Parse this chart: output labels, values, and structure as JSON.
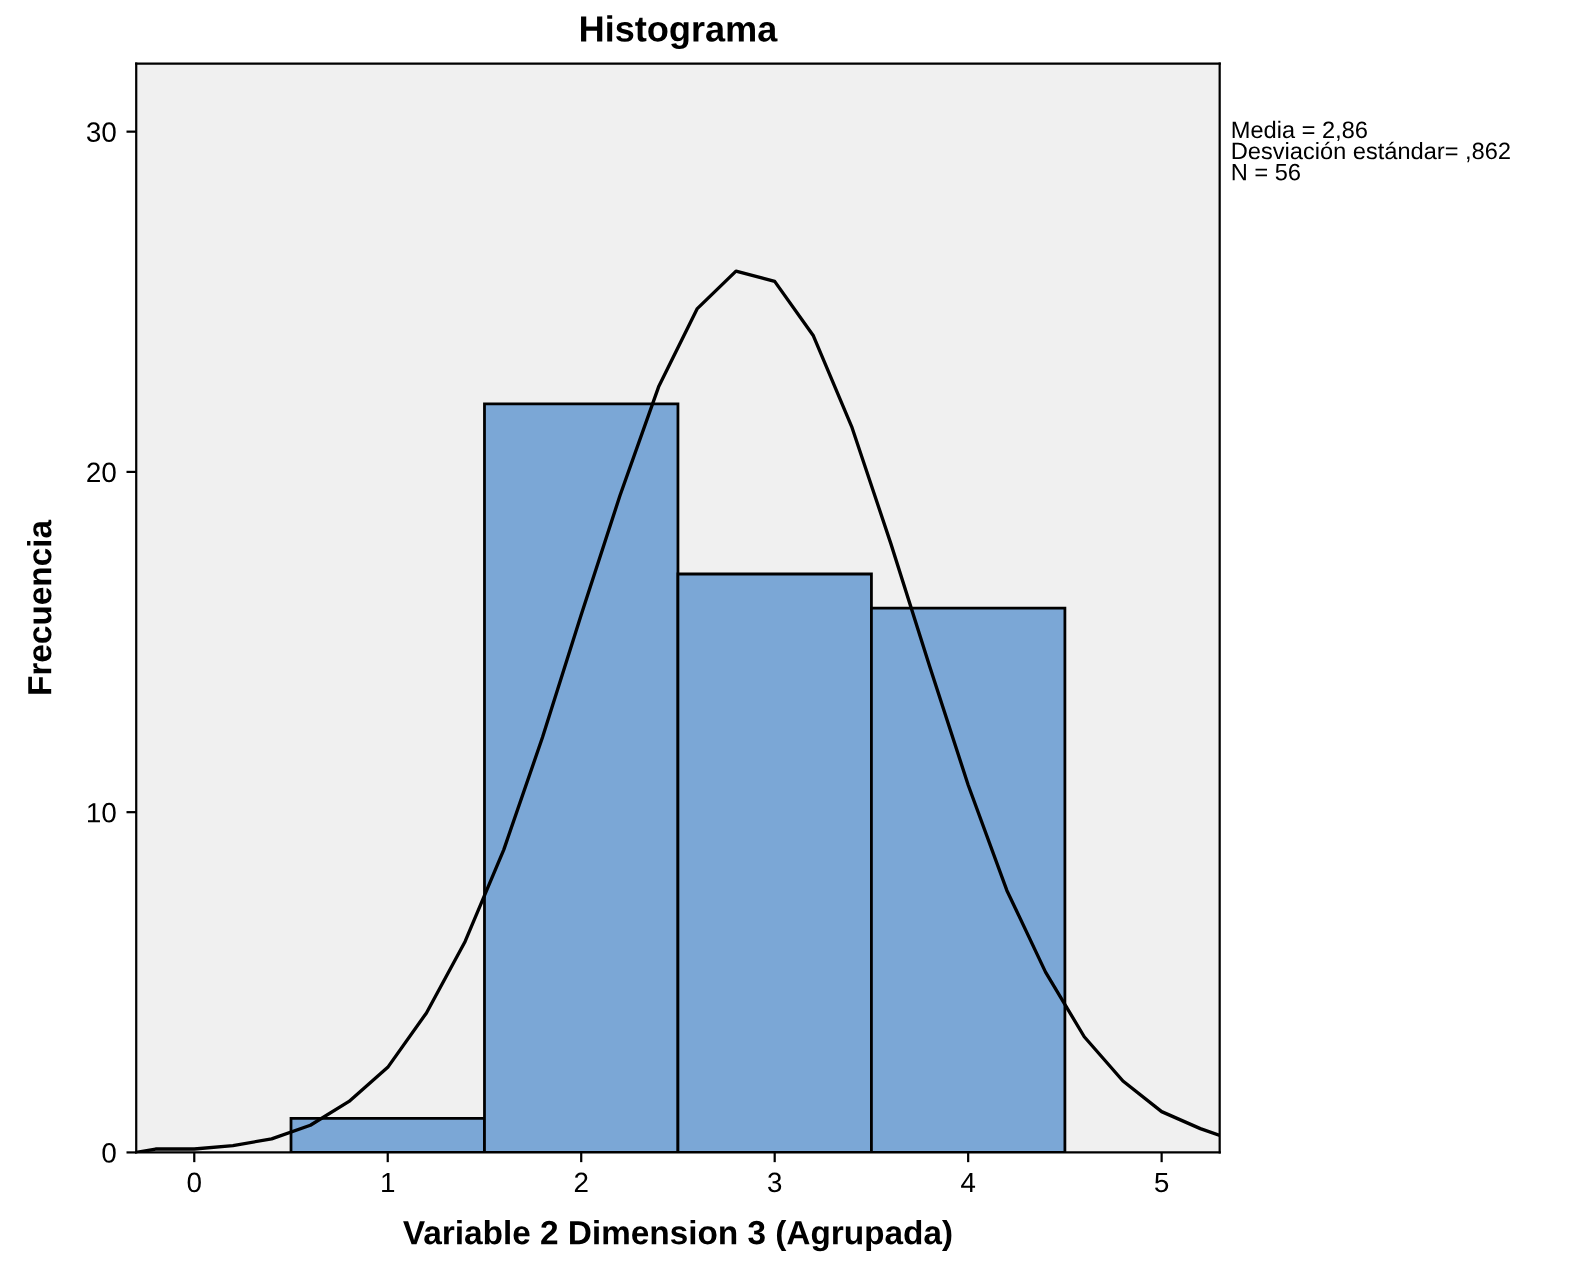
{
  "chart_data": {
    "type": "histogram",
    "title": "Histograma",
    "xlabel": "Variable 2 Dimension 3 (Agrupada)",
    "ylabel": "Frecuencia",
    "bins": [
      0.5,
      1.5,
      2.5,
      3.5,
      4.5
    ],
    "values": [
      1,
      22,
      17,
      16
    ],
    "color": "#7ba7d6",
    "series": [
      {
        "type": "line",
        "color": "#000000",
        "x": [
          -0.3,
          -0.2,
          0.0,
          0.2,
          0.4,
          0.6,
          0.8,
          1.0,
          1.2,
          1.4,
          1.6,
          1.8,
          2.0,
          2.2,
          2.4,
          2.6,
          2.8,
          3.0,
          3.2,
          3.4,
          3.6,
          3.8,
          4.0,
          4.2,
          4.4,
          4.6,
          4.8,
          5.0,
          5.2,
          5.3
        ],
        "values": [
          0.0,
          0.1,
          0.1,
          0.2,
          0.4,
          0.8,
          1.5,
          2.5,
          4.1,
          6.2,
          8.9,
          12.2,
          15.8,
          19.3,
          22.5,
          24.8,
          25.9,
          25.6,
          24.0,
          21.3,
          17.9,
          14.3,
          10.8,
          7.7,
          5.3,
          3.4,
          2.1,
          1.2,
          0.7,
          0.5
        ]
      }
    ],
    "xlim": [
      -0.3,
      5.3
    ],
    "ylim": [
      0,
      32
    ],
    "xticks": [
      0,
      1,
      2,
      3,
      4,
      5
    ],
    "yticks": [
      0,
      10,
      20,
      30
    ],
    "grid": false,
    "legend": false,
    "annotations": [
      "Media = 2,86\nDesviación estándar= ,862\nN = 56"
    ]
  }
}
